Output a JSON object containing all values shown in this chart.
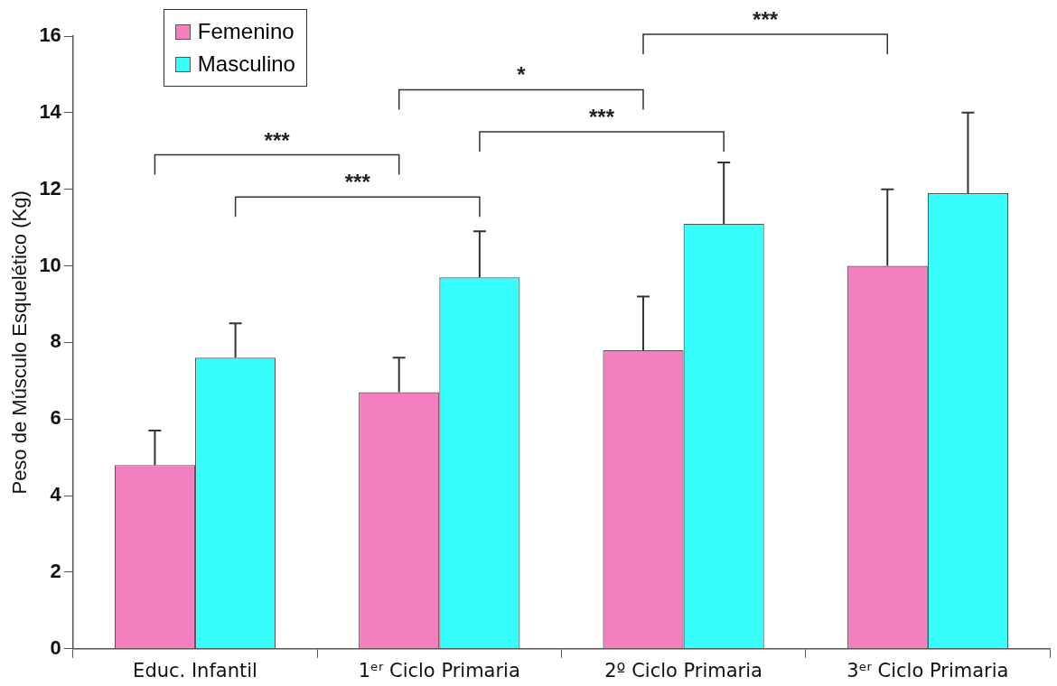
{
  "chart_data": {
    "type": "bar",
    "ylabel": "Peso de Músculo Esquelético (Kg)",
    "categories": [
      "Educ. Infantil",
      "1ᵉʳ Ciclo Primaria",
      "2º Ciclo Primaria",
      "3ᵉʳ Ciclo Primaria"
    ],
    "series": [
      {
        "name": "Femenino",
        "color": "#f47fbf",
        "values": [
          4.8,
          6.7,
          7.8,
          10.0
        ],
        "errors": [
          [
            4.8,
            5.7
          ],
          [
            6.7,
            7.6
          ],
          [
            7.8,
            9.2
          ],
          [
            10.0,
            12.0
          ]
        ]
      },
      {
        "name": "Masculino",
        "color": "#38fdfd",
        "values": [
          7.6,
          9.7,
          11.1,
          11.9
        ],
        "errors": [
          [
            7.6,
            8.5
          ],
          [
            9.7,
            10.9
          ],
          [
            11.1,
            12.7
          ],
          [
            11.9,
            14.0
          ]
        ]
      }
    ],
    "ylim": [
      0,
      16
    ],
    "yticks": [
      0,
      2,
      4,
      6,
      8,
      10,
      12,
      14,
      16
    ],
    "grid": false,
    "legend": "top left",
    "annotations": [
      "***",
      "***",
      "*",
      "***",
      "***"
    ]
  }
}
